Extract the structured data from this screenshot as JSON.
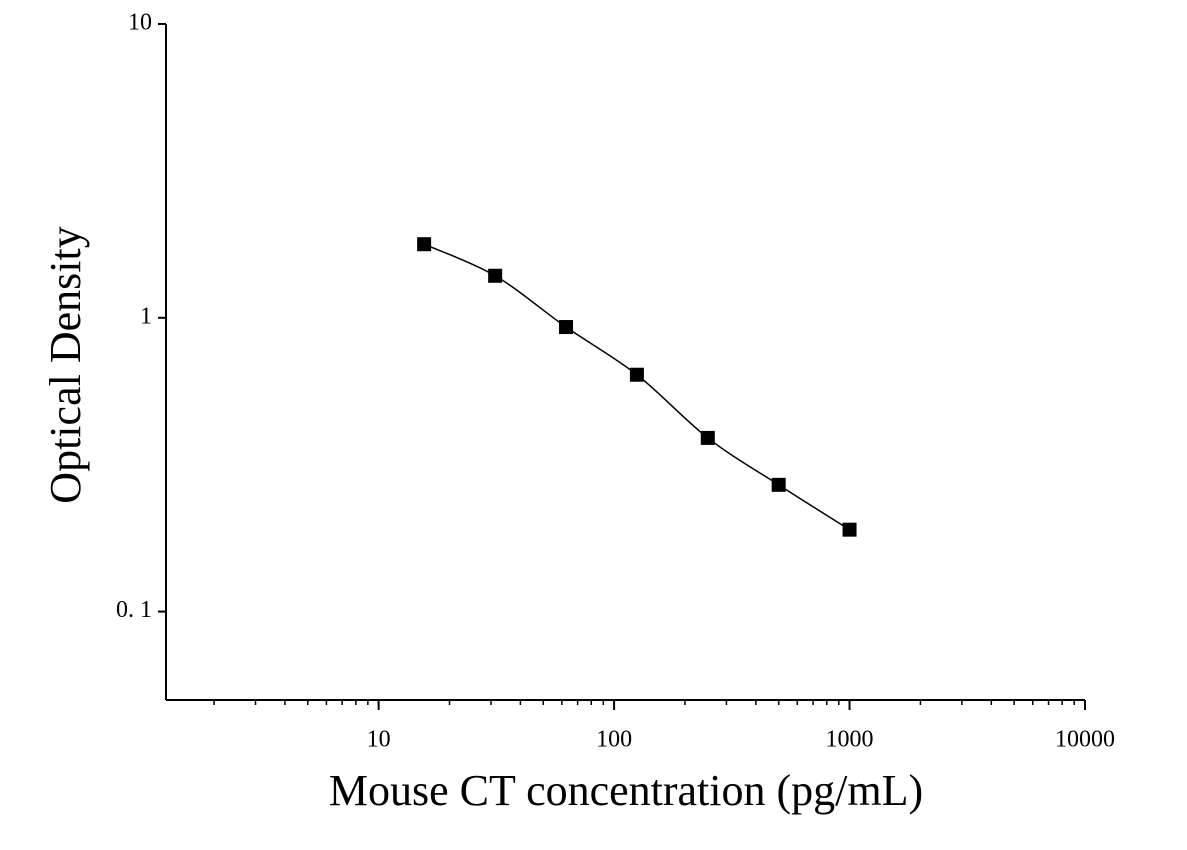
{
  "chart_data": {
    "type": "scatter",
    "x_label": "Mouse CT concentration (pg/mL)",
    "y_label": "Optical Density",
    "x": [
      15.6,
      31.25,
      62.5,
      125,
      250,
      500,
      1000
    ],
    "values": [
      1.78,
      1.39,
      0.93,
      0.64,
      0.39,
      0.27,
      0.19
    ],
    "color": "#000000",
    "fit_line": true,
    "x_log": true,
    "y_log": true,
    "x_minor_ticks": true,
    "xlim": [
      1.25,
      10000
    ],
    "ylim": [
      0.05,
      10
    ],
    "xticks": [
      10,
      100,
      1000,
      10000
    ],
    "yticks": [
      10,
      1,
      {
        "value": 0.1,
        "label": "0. 1"
      }
    ]
  }
}
